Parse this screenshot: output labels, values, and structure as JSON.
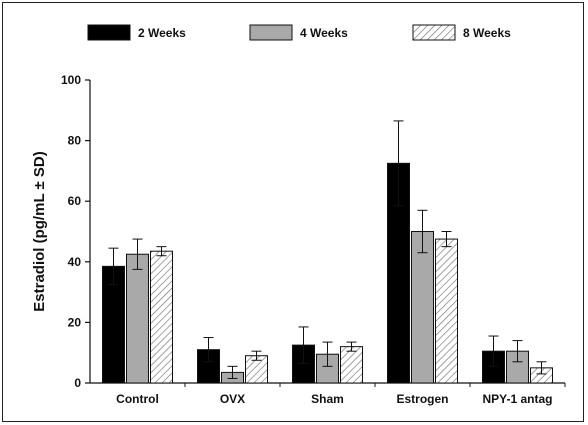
{
  "chart_data": {
    "type": "bar",
    "title": "",
    "xlabel": "",
    "ylabel": "Estradiol (pg/mL ± SD)",
    "ylim": [
      0,
      100
    ],
    "yticks": [
      0,
      20,
      40,
      60,
      80,
      100
    ],
    "categories": [
      "Control",
      "OVX",
      "Sham",
      "Estrogen",
      "NPY-1 antag"
    ],
    "series": [
      {
        "name": "2 Weeks",
        "values": [
          38.5,
          11,
          12.5,
          72.5,
          10.5
        ],
        "errors": [
          6,
          4,
          6,
          14,
          5
        ],
        "fill": "#000000",
        "pattern": "solid"
      },
      {
        "name": "4 Weeks",
        "values": [
          42.5,
          3.5,
          9.5,
          50,
          10.5
        ],
        "errors": [
          5,
          2,
          4,
          7,
          3.5
        ],
        "fill": "#a9a9a9",
        "pattern": "solid"
      },
      {
        "name": "8 Weeks",
        "values": [
          43.5,
          9,
          12,
          47.5,
          5
        ],
        "errors": [
          1.5,
          1.5,
          1.5,
          2.5,
          2
        ],
        "fill": "#ffffff",
        "pattern": "hatched"
      }
    ],
    "legend_position": "top",
    "grid": false
  }
}
